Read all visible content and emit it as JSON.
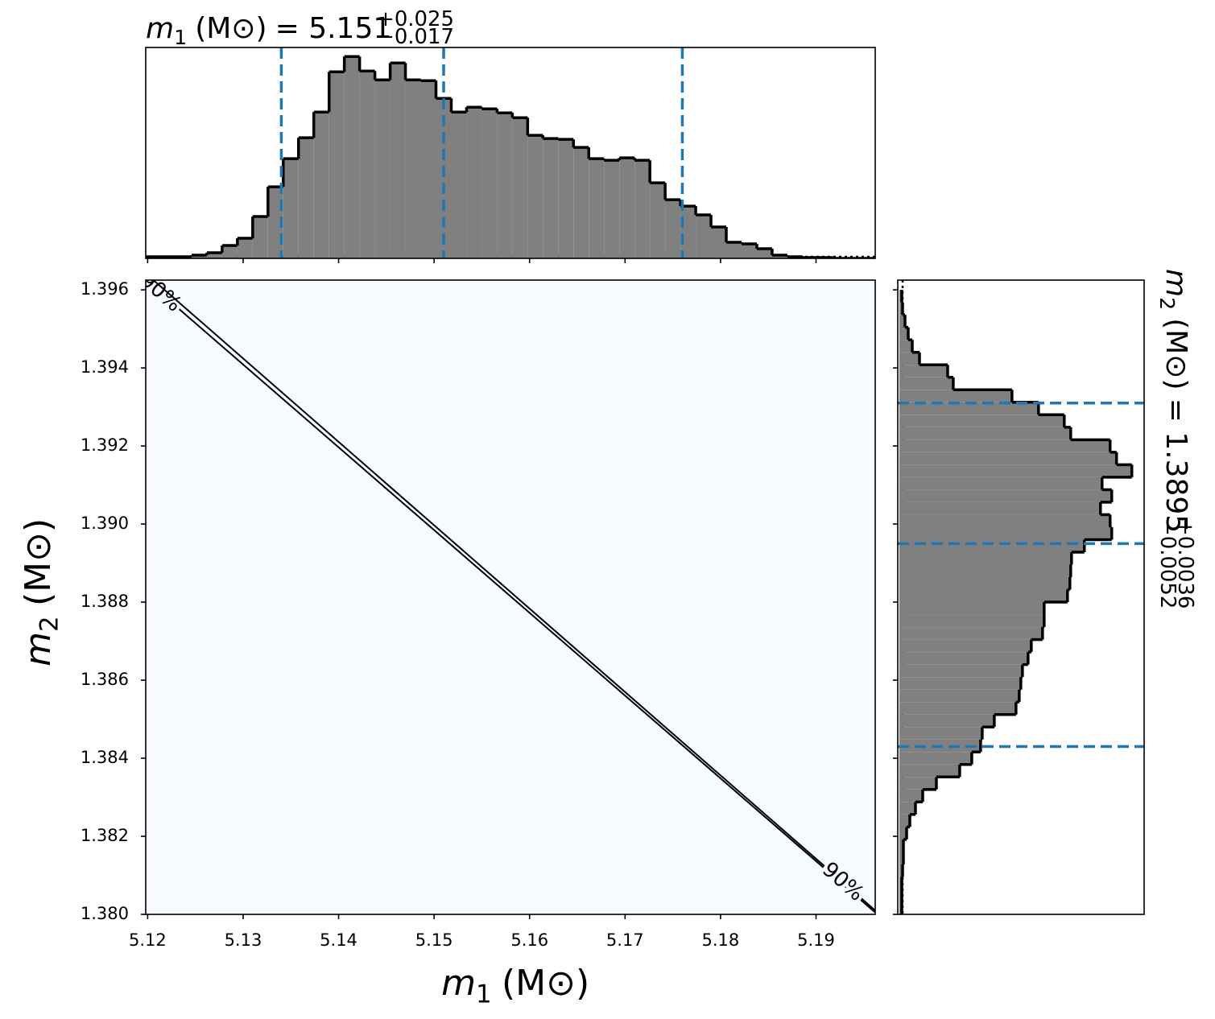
{
  "chart_data": [
    {
      "type": "histogram",
      "orientation": "vertical",
      "title": {
        "symbol": "m",
        "index": "1",
        "unit": "(M⊙)",
        "equals": "= 5.151",
        "plus": "+0.025",
        "minus": "−0.017"
      },
      "bins": [
        5.1198,
        5.1214,
        5.123,
        5.1246,
        5.1262,
        5.1278,
        5.1294,
        5.131,
        5.1326,
        5.1342,
        5.1358,
        5.1374,
        5.139,
        5.1406,
        5.1422,
        5.1438,
        5.1454,
        5.147,
        5.1486,
        5.1502,
        5.1518,
        5.1534,
        5.155,
        5.1566,
        5.1582,
        5.1598,
        5.1614,
        5.163,
        5.1646,
        5.1662,
        5.1678,
        5.1694,
        5.171,
        5.1726,
        5.1742,
        5.1758,
        5.1774,
        5.179,
        5.1806,
        5.1822,
        5.1838,
        5.1854,
        5.187,
        5.1886,
        5.1902,
        5.1918,
        5.1934,
        5.195,
        5.1966
      ],
      "values": [
        2,
        2,
        2,
        4,
        7,
        16,
        25,
        52,
        89,
        124,
        150,
        182,
        232,
        251,
        233,
        222,
        243,
        222,
        221,
        199,
        182,
        188,
        186,
        181,
        175,
        153,
        149,
        148,
        138,
        124,
        122,
        125,
        122,
        94,
        73,
        65,
        54,
        39,
        20,
        18,
        12,
        4,
        2,
        1,
        1,
        0,
        0,
        0
      ],
      "color": "#808080",
      "edge_color": "#000000",
      "quantiles": [
        5.134,
        5.151,
        5.176
      ],
      "quantile_color": "#1f77b4",
      "xlim": [
        5.1198,
        5.1962
      ],
      "xticks": [
        5.12,
        5.13,
        5.14,
        5.15,
        5.16,
        5.17,
        5.18,
        5.19
      ]
    },
    {
      "type": "contour",
      "xlabel": {
        "symbol": "m",
        "index": "1",
        "unit": "(M⊙)"
      },
      "ylabel": {
        "symbol": "m",
        "index": "2",
        "unit": "(M⊙)"
      },
      "xlim": [
        5.1198,
        5.1962
      ],
      "ylim": [
        1.38,
        1.39625
      ],
      "xticks": [
        5.12,
        5.13,
        5.14,
        5.15,
        5.16,
        5.17,
        5.18,
        5.19
      ],
      "yticks": [
        {
          "value": 1.38,
          "label": "1.380"
        },
        1.382,
        1.384,
        1.386,
        1.388,
        {
          "value": 1.39,
          "label": "1.390"
        },
        1.392,
        1.394,
        1.396
      ],
      "background": "#f7fbff",
      "contours": [
        {
          "label": "90%",
          "x": [
            5.1198,
            5.1962
          ],
          "y": [
            1.39625,
            1.38005
          ]
        },
        {
          "label": "90%",
          "x": [
            5.1206,
            5.1962
          ],
          "y": [
            1.39625,
            1.3801
          ]
        }
      ]
    },
    {
      "type": "histogram",
      "orientation": "horizontal",
      "title": {
        "symbol": "m",
        "index": "2",
        "unit": "(M⊙)",
        "equals": "= 1.3895",
        "plus": "+0.0036",
        "minus": "−0.0052"
      },
      "bins": [
        1.38,
        1.38032,
        1.38064,
        1.38096,
        1.38128,
        1.3816,
        1.38192,
        1.38224,
        1.38256,
        1.38288,
        1.3832,
        1.38352,
        1.38384,
        1.38416,
        1.38448,
        1.3848,
        1.38512,
        1.38544,
        1.38576,
        1.38608,
        1.3864,
        1.38672,
        1.38704,
        1.38736,
        1.38768,
        1.388,
        1.38832,
        1.38864,
        1.38896,
        1.38928,
        1.3896,
        1.38992,
        1.39024,
        1.39056,
        1.39088,
        1.3912,
        1.39152,
        1.39184,
        1.39216,
        1.39248,
        1.3928,
        1.39312,
        1.39344,
        1.39376,
        1.39408,
        1.3944,
        1.39472,
        1.39504,
        1.39536,
        1.39568,
        1.396
      ],
      "values": [
        3,
        3,
        3,
        4,
        5,
        5,
        9,
        13,
        20,
        29,
        46,
        75,
        90,
        101,
        103,
        118,
        145,
        149,
        151,
        153,
        160,
        164,
        178,
        180,
        180,
        209,
        212,
        213,
        214,
        230,
        264,
        262,
        250,
        264,
        252,
        289,
        270,
        262,
        213,
        205,
        173,
        140,
        67,
        60,
        25,
        16,
        11,
        7,
        4,
        3
      ],
      "color": "#808080",
      "edge_color": "#000000",
      "quantiles": [
        1.3843,
        1.3895,
        1.3931
      ],
      "quantile_color": "#1f77b4",
      "ylim": [
        1.38,
        1.39625
      ],
      "yticks": [
        1.38,
        1.382,
        1.384,
        1.386,
        1.388,
        1.39,
        1.392,
        1.394,
        1.396
      ]
    }
  ]
}
